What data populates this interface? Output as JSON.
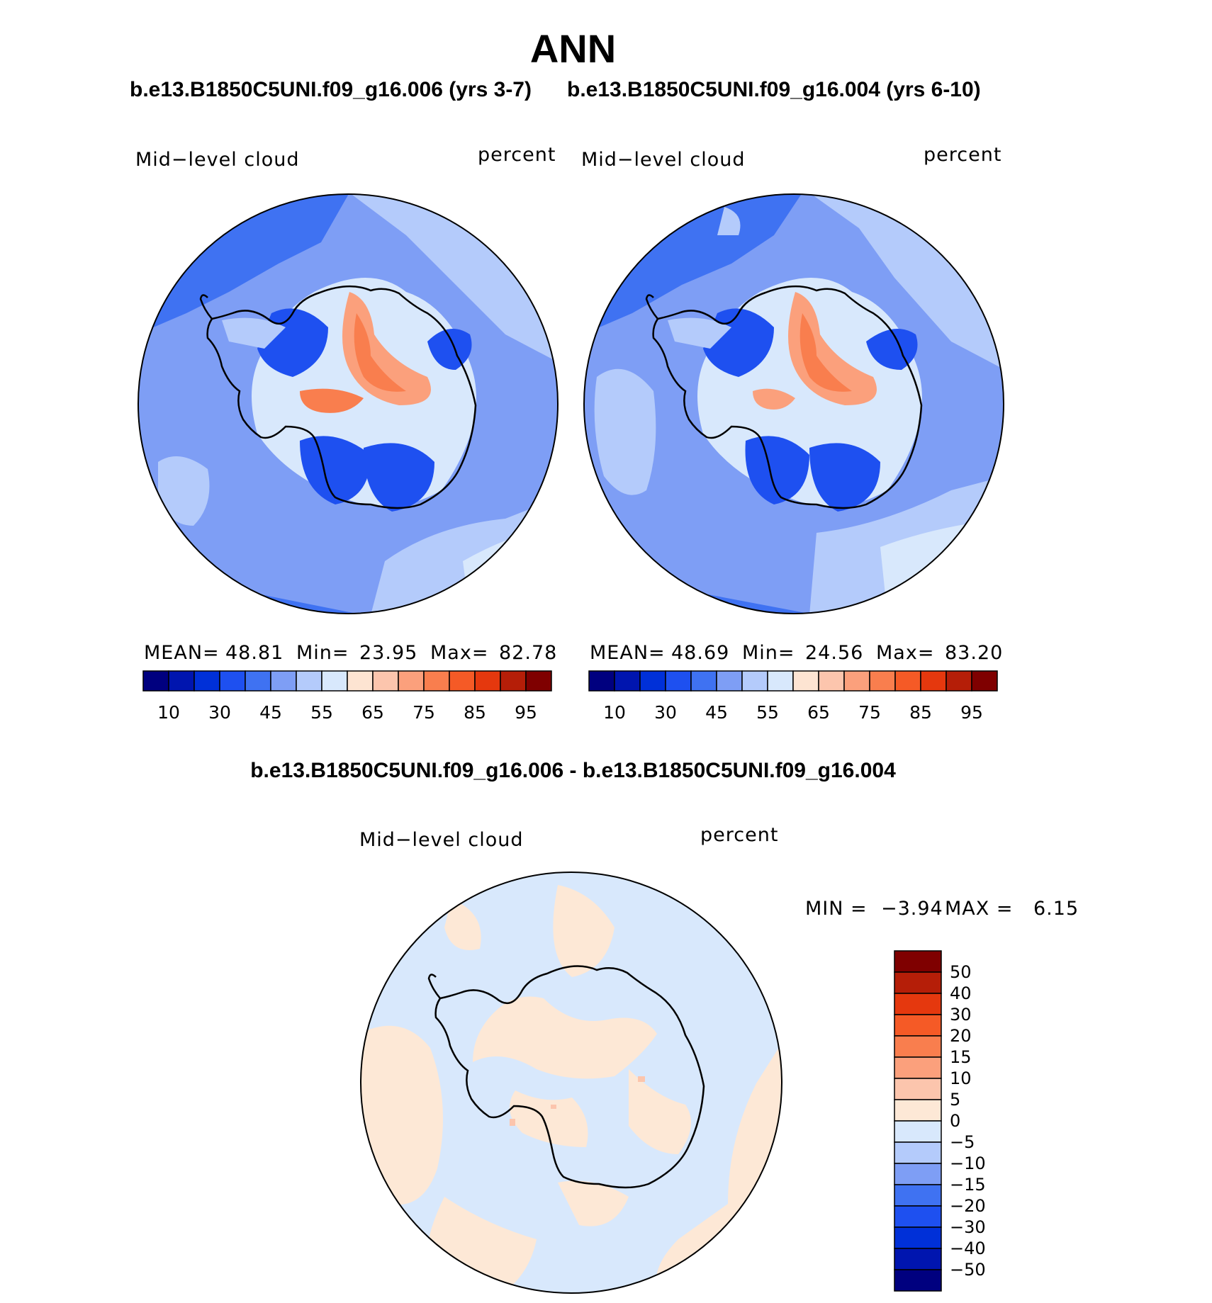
{
  "title": "ANN",
  "subtitle_left": "b.e13.B1850C5UNI.f09_g16.006 (yrs 3-7)",
  "subtitle_right": "b.e13.B1850C5UNI.f09_g16.004 (yrs 6-10)",
  "diff_title": "b.e13.B1850C5UNI.f09_g16.006 - b.e13.B1850C5UNI.f09_g16.004",
  "chart_data": [
    {
      "type": "heatmap",
      "projection": "polar-stereographic (south pole)",
      "variable": "Mid−level cloud",
      "units": "percent",
      "stats": {
        "mean_label": "MEAN=",
        "mean": "48.81",
        "min_label": "Min=",
        "min": "23.95",
        "max_label": "Max=",
        "max": "82.78"
      },
      "colorbar": {
        "orientation": "horizontal",
        "tick_labels": [
          "10",
          "30",
          "45",
          "55",
          "65",
          "75",
          "85",
          "95"
        ],
        "colors": [
          "#00007f",
          "#0015af",
          "#0030d8",
          "#1e50f0",
          "#3f72f2",
          "#7e9ef5",
          "#b4cbfb",
          "#d8e8fc",
          "#fde4d2",
          "#fcc5ad",
          "#fba07c",
          "#f97e4e",
          "#f55a26",
          "#e5380e",
          "#b51e08",
          "#7f0000"
        ]
      }
    },
    {
      "type": "heatmap",
      "projection": "polar-stereographic (south pole)",
      "variable": "Mid−level cloud",
      "units": "percent",
      "stats": {
        "mean_label": "MEAN=",
        "mean": "48.69",
        "min_label": "Min=",
        "min": "24.56",
        "max_label": "Max=",
        "max": "83.20"
      },
      "colorbar": {
        "orientation": "horizontal",
        "tick_labels": [
          "10",
          "30",
          "45",
          "55",
          "65",
          "75",
          "85",
          "95"
        ],
        "colors": [
          "#00007f",
          "#0015af",
          "#0030d8",
          "#1e50f0",
          "#3f72f2",
          "#7e9ef5",
          "#b4cbfb",
          "#d8e8fc",
          "#fde4d2",
          "#fcc5ad",
          "#fba07c",
          "#f97e4e",
          "#f55a26",
          "#e5380e",
          "#b51e08",
          "#7f0000"
        ]
      }
    },
    {
      "type": "heatmap",
      "projection": "polar-stereographic (south pole)",
      "variable": "Mid−level cloud",
      "units": "percent",
      "stats": {
        "min_label": "MIN =",
        "min": "−3.94",
        "max_label": "MAX =",
        "max": "6.15"
      },
      "colorbar": {
        "orientation": "vertical",
        "tick_labels": [
          "50",
          "40",
          "30",
          "20",
          "15",
          "10",
          "5",
          "0",
          "−5",
          "−10",
          "−15",
          "−20",
          "−30",
          "−40",
          "−50"
        ],
        "colors": [
          "#7f0000",
          "#b51e08",
          "#e5380e",
          "#f55a26",
          "#f97e4e",
          "#fba07c",
          "#fcc5ad",
          "#fde8d6",
          "#d8e8fc",
          "#b4cbfb",
          "#7e9ef5",
          "#3f72f2",
          "#1e50f0",
          "#0030d8",
          "#0015af",
          "#00007f"
        ]
      }
    }
  ]
}
